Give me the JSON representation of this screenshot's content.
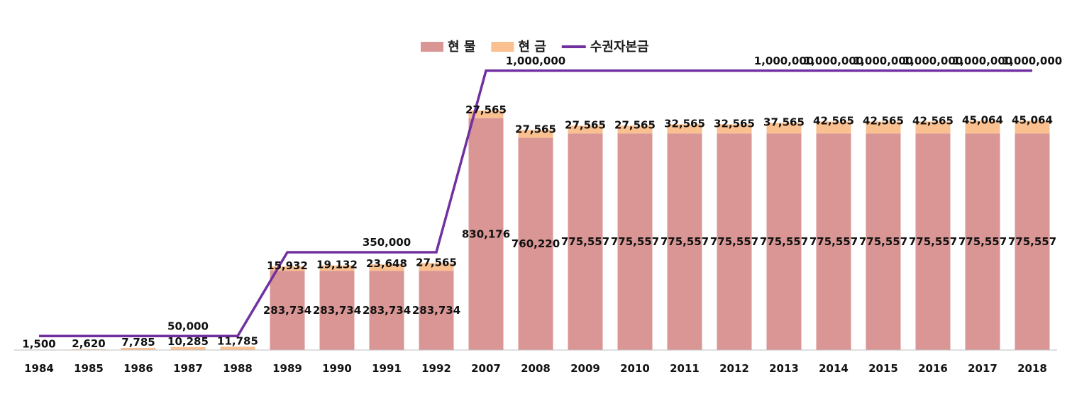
{
  "chart_data": {
    "type": "bar",
    "stacked": true,
    "categories": [
      "1984",
      "1985",
      "1986",
      "1987",
      "1988",
      "1989",
      "1990",
      "1991",
      "1992",
      "2007",
      "2008",
      "2009",
      "2010",
      "2011",
      "2012",
      "2013",
      "2014",
      "2015",
      "2016",
      "2017",
      "2018"
    ],
    "series": [
      {
        "name": "현 물",
        "kind": "bar",
        "color": "#d99694",
        "values": [
          0,
          0,
          0,
          0,
          0,
          283734,
          283734,
          283734,
          283734,
          830176,
          760220,
          775557,
          775557,
          775557,
          775557,
          775557,
          775557,
          775557,
          775557,
          775557,
          775557
        ],
        "labels": [
          null,
          null,
          null,
          null,
          null,
          "283,734",
          "283,734",
          "283,734",
          "283,734",
          "830,176",
          "760,220",
          "775,557",
          "775,557",
          "775,557",
          "775,557",
          "775,557",
          "775,557",
          "775,557",
          "775,557",
          "775,557",
          "775,557"
        ]
      },
      {
        "name": "현 금",
        "kind": "bar",
        "color": "#fac090",
        "values": [
          1500,
          2620,
          7785,
          10285,
          11785,
          15932,
          19132,
          23648,
          27565,
          27565,
          27565,
          27565,
          27565,
          32565,
          32565,
          37565,
          42565,
          42565,
          42565,
          45064,
          45064
        ],
        "labels": [
          "1,500",
          "2,620",
          "7,785",
          "10,285",
          "11,785",
          "15,932",
          "19,132",
          "23,648",
          "27,565",
          "27,565",
          "27,565",
          "27,565",
          "27,565",
          "32,565",
          "32,565",
          "37,565",
          "42,565",
          "42,565",
          "42,565",
          "45,064",
          "45,064"
        ]
      },
      {
        "name": "수권자본금",
        "kind": "line",
        "color": "#7030a0",
        "values": [
          50000,
          50000,
          50000,
          50000,
          50000,
          350000,
          350000,
          350000,
          350000,
          1000000,
          1000000,
          1000000,
          1000000,
          1000000,
          1000000,
          1000000,
          1000000,
          1000000,
          1000000,
          1000000,
          1000000
        ],
        "labels": [
          null,
          null,
          null,
          "50,000",
          null,
          null,
          null,
          "350,000",
          null,
          null,
          "1,000,000",
          null,
          null,
          null,
          null,
          "1,000,000",
          "1,000,000",
          "1,000,000",
          "1,000,000",
          "1,000,000",
          "1,000,000"
        ]
      }
    ],
    "title": "",
    "xlabel": "",
    "ylabel": "",
    "ylim": [
      0,
      1040000
    ],
    "legend_position": "top-center",
    "grid": false
  }
}
